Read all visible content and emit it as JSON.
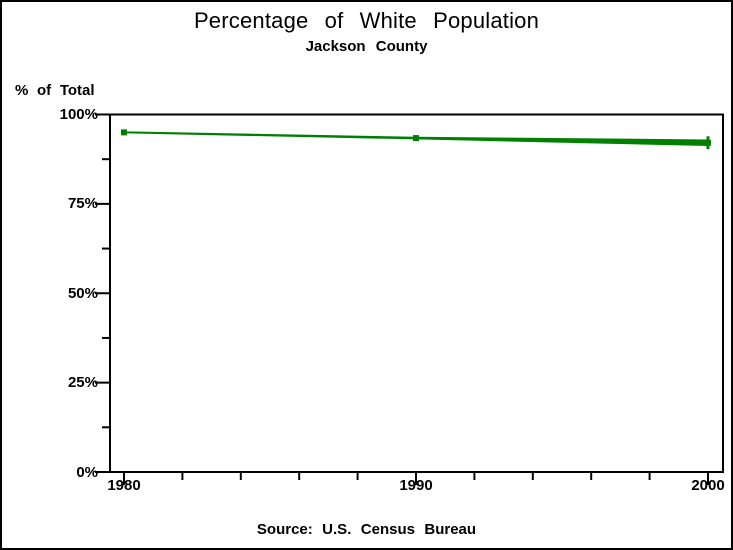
{
  "window": {
    "background": "#ffffff",
    "border_color": "#000000"
  },
  "chart_data": {
    "type": "line",
    "title": "Percentage of White Population",
    "subtitle": "Jackson County",
    "ylabel": "% of Total",
    "footnote": "Source: U.S. Census Bureau",
    "x": [
      1980,
      1990,
      2000
    ],
    "values": [
      95.0,
      93.4,
      92.1
    ],
    "line_color": "#008000",
    "axis_color": "#000000",
    "marker": "square",
    "xlim": [
      1980,
      2000
    ],
    "ylim": [
      0,
      100
    ],
    "xtick_labels": [
      "1980",
      "1990",
      "2000"
    ],
    "xtick_values": [
      1980,
      1990,
      2000
    ],
    "xtick_minor_step": 2,
    "ytick_labels": [
      "100%",
      "75%",
      "50%",
      "25%",
      "0%"
    ],
    "ytick_values": [
      100,
      75,
      50,
      25,
      0
    ],
    "ytick_major_step": 25,
    "ytick_minor_step": 12.5,
    "grid": false,
    "legend": false
  }
}
